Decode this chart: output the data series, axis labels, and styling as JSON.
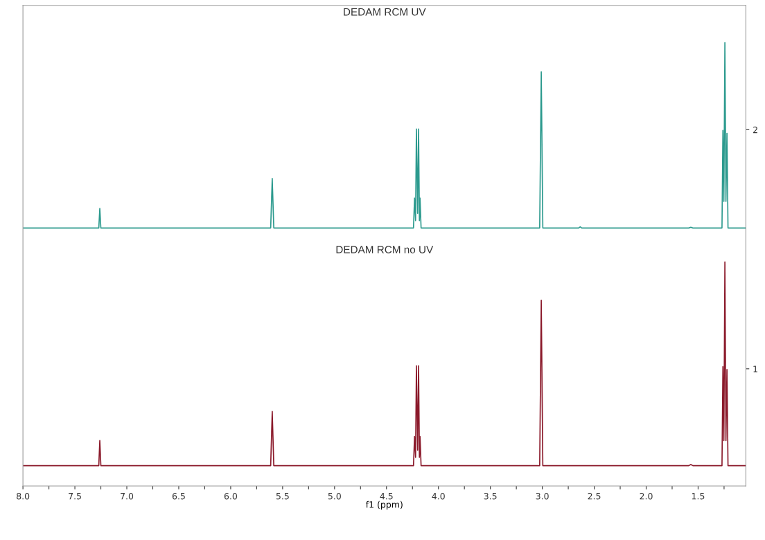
{
  "chart_data": {
    "type": "line",
    "xlabel": "f1 (ppm)",
    "annotations": [
      "DEDAM RCM UV",
      "DEDAM RCM no UV"
    ],
    "series": [
      {
        "color": "#2c9a8e",
        "x": [
          8.0,
          7.27,
          7.26,
          7.25,
          5.615,
          5.6,
          5.585,
          4.24,
          4.23,
          4.22,
          4.212,
          4.2,
          4.191,
          4.183,
          4.177,
          4.167,
          3.025,
          3.01,
          2.995,
          2.65,
          2.635,
          2.62,
          1.59,
          1.57,
          1.55,
          1.27,
          1.261,
          1.252,
          1.242,
          1.232,
          1.222,
          1.212,
          1.04
        ],
        "values": [
          1.589,
          1.589,
          1.671,
          1.589,
          1.589,
          1.796,
          1.589,
          1.589,
          1.714,
          1.62,
          2.003,
          1.65,
          2.003,
          1.62,
          1.714,
          1.589,
          1.589,
          2.242,
          1.589,
          1.589,
          1.594,
          1.589,
          1.589,
          1.592,
          1.589,
          1.589,
          1.997,
          1.7,
          2.364,
          1.7,
          1.985,
          1.589,
          1.589
        ]
      },
      {
        "color": "#8b1a2b",
        "x": [
          8.0,
          7.27,
          7.26,
          7.25,
          5.615,
          5.6,
          5.585,
          4.24,
          4.23,
          4.22,
          4.212,
          4.2,
          4.191,
          4.183,
          4.177,
          4.167,
          3.025,
          3.01,
          2.995,
          1.59,
          1.57,
          1.55,
          1.27,
          1.261,
          1.252,
          1.242,
          1.232,
          1.222,
          1.212,
          1.04
        ],
        "values": [
          0.595,
          0.595,
          0.7,
          0.595,
          0.595,
          0.822,
          0.595,
          0.595,
          0.717,
          0.63,
          1.013,
          0.66,
          1.013,
          0.63,
          0.717,
          0.595,
          0.595,
          1.287,
          0.595,
          0.595,
          0.6,
          0.595,
          0.595,
          1.009,
          0.7,
          1.447,
          0.7,
          0.997,
          0.595,
          0.595
        ]
      }
    ],
    "xlim": [
      8.0,
      1.04
    ],
    "xticks": [
      {
        "value": 8.0,
        "label": "8.0"
      },
      {
        "value": 7.75,
        "label": null
      },
      7.5,
      {
        "value": 7.25,
        "label": null
      },
      {
        "value": 7.0,
        "label": "7.0"
      },
      {
        "value": 6.75,
        "label": null
      },
      6.5,
      {
        "value": 6.25,
        "label": null
      },
      {
        "value": 6.0,
        "label": "6.0"
      },
      {
        "value": 5.75,
        "label": null
      },
      5.5,
      {
        "value": 5.25,
        "label": null
      },
      {
        "value": 5.0,
        "label": "5.0"
      },
      {
        "value": 4.75,
        "label": null
      },
      4.5,
      {
        "value": 4.25,
        "label": null
      },
      {
        "value": 4.0,
        "label": "4.0"
      },
      {
        "value": 3.75,
        "label": null
      },
      3.5,
      {
        "value": 3.25,
        "label": null
      },
      {
        "value": 3.0,
        "label": "3.0"
      },
      {
        "value": 2.75,
        "label": null
      },
      2.5,
      {
        "value": 2.25,
        "label": null
      },
      {
        "value": 2.0,
        "label": "2.0"
      },
      {
        "value": 1.75,
        "label": null
      },
      1.5,
      {
        "value": 1.25,
        "label": null
      }
    ],
    "ylim": [
      0.51,
      2.52
    ],
    "yticks": [
      1,
      2
    ],
    "grid": false,
    "legend": false
  }
}
